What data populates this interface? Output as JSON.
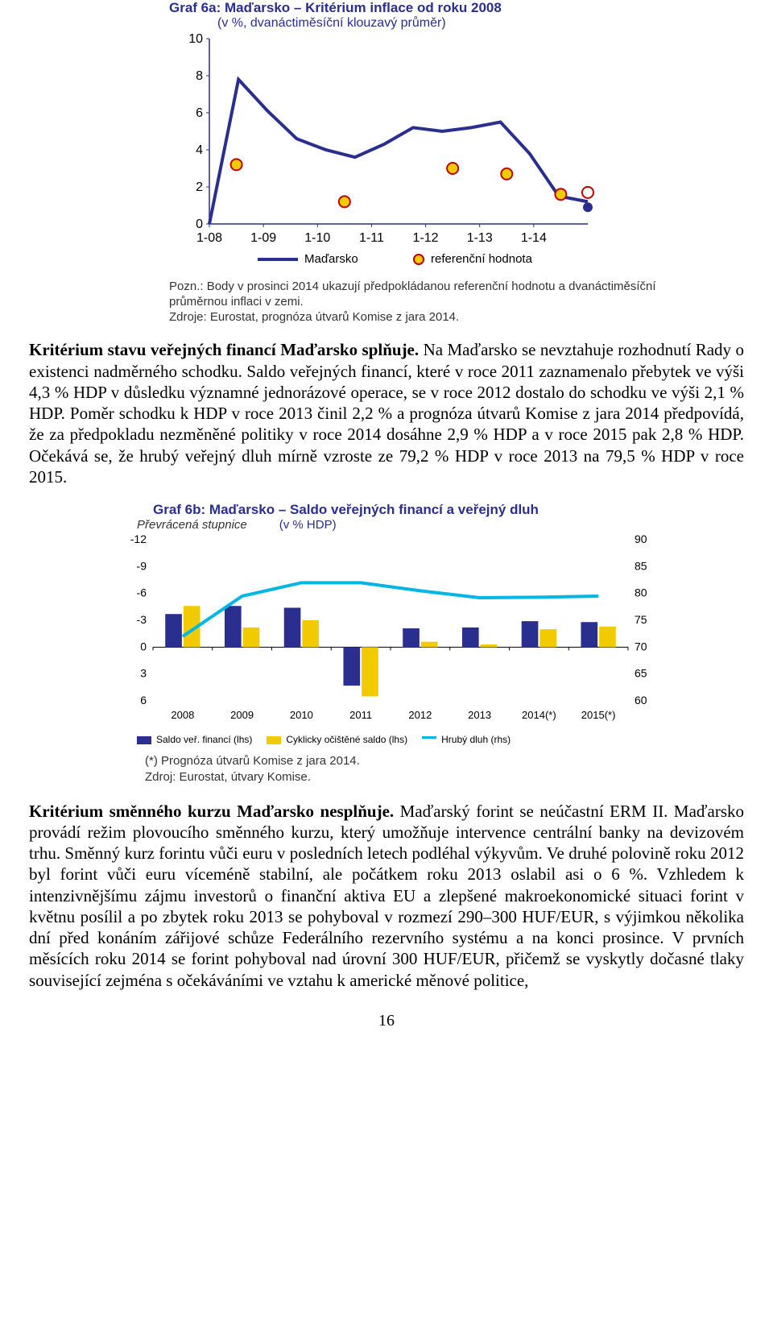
{
  "chartA": {
    "title_prefix": "Graf 6a: ",
    "title_bold1": "Maďarsko – Kritérium inflace od roku 2008",
    "subtitle": "(v %, dvanáctiměsíční klouzavý průměr)",
    "type": "line",
    "colors": {
      "line": "#2a2e8f",
      "axis": "#2a2e8f",
      "marker_fill": "#f2ca00",
      "marker_stroke": "#c10000"
    },
    "xTicks": [
      "1-08",
      "1-09",
      "1-10",
      "1-11",
      "1-12",
      "1-13",
      "1-14"
    ],
    "yTicks": [
      0,
      2,
      4,
      6,
      8,
      10
    ],
    "xlim": [
      0,
      7
    ],
    "ylim": [
      0,
      10
    ],
    "series": [
      0,
      7.8,
      6.1,
      4.6,
      4.0,
      3.6,
      4.3,
      5.2,
      5.0,
      5.2,
      5.5,
      3.8,
      1.5,
      1.2
    ],
    "markers": [
      {
        "x": 0.5,
        "y": 3.2,
        "type": "filled"
      },
      {
        "x": 2.5,
        "y": 1.2,
        "type": "filled"
      },
      {
        "x": 4.5,
        "y": 3.0,
        "type": "filled"
      },
      {
        "x": 5.5,
        "y": 2.7,
        "type": "filled"
      },
      {
        "x": 6.5,
        "y": 1.6,
        "type": "filled"
      },
      {
        "x": 7.0,
        "y": 1.7,
        "type": "open"
      },
      {
        "x": 7.0,
        "y": 0.9,
        "type": "solid-blue"
      }
    ],
    "legend": {
      "series": "Maďarsko",
      "reference": "referenční hodnota"
    },
    "note1": "Pozn.: Body v prosinci 2014 ukazují předpokládanou referenční hodnotu a dvanáctiměsíční průměrnou inflaci v zemi.",
    "note2": "Zdroje: Eurostat, prognóza útvarů Komise z jara 2014.",
    "axis_fontsize": 16,
    "title_fontsize": 17
  },
  "para1_prefix": "Kritérium stavu veřejných financí Maďarsko splňuje.",
  "para1_rest": " Na Maďarsko se nevztahuje rozhodnutí Rady o existenci nadměrného schodku. Saldo veřejných financí, které v roce 2011 zaznamenalo přebytek ve výši 4,3 % HDP v důsledku významné jednorázové operace, se v roce 2012 dostalo do schodku ve výši 2,1 % HDP. Poměr schodku k HDP v roce 2013 činil 2,2 % a prognóza útvarů Komise z jara 2014 předpovídá, že za předpokladu nezměněné politiky v roce 2014 dosáhne 2,9 % HDP a v roce 2015 pak 2,8 % HDP. Očekává se, že hrubý veřejný dluh mírně vzroste ze 79,2 % HDP v roce 2013 na 79,5 % HDP v roce 2015.",
  "chartB": {
    "title_prefix": "Graf 6b: ",
    "title_bold1": "Maďarsko – Saldo veřejných financí a veřejný dluh",
    "overlabel": "Převrácená stupnice",
    "subtitle": "(v % HDP)",
    "type": "bar-line-dual",
    "colors": {
      "bar1": "#2a2e8f",
      "bar2": "#f2ca00",
      "line": "#00b6e4",
      "axis": "#000000",
      "grid": "#cccccc"
    },
    "xLabels": [
      "2008",
      "2009",
      "2010",
      "2011",
      "2012",
      "2013",
      "2014(*)",
      "2015(*)"
    ],
    "yLeftTicks": [
      -12,
      -9,
      -6,
      -3,
      0,
      3,
      6
    ],
    "yRightTicks": [
      90,
      85,
      80,
      75,
      70,
      65,
      60
    ],
    "barsBlue": [
      -3.7,
      -4.6,
      -4.4,
      4.3,
      -2.1,
      -2.2,
      -2.9,
      -2.8
    ],
    "barsYellow": [
      -4.6,
      -2.2,
      -3.0,
      5.5,
      -0.6,
      -0.3,
      -2.0,
      -2.3
    ],
    "lineDebt": [
      72,
      79.5,
      82,
      82,
      80.5,
      79.2,
      79.3,
      79.5
    ],
    "legend": {
      "l1": "Saldo veř. financí (lhs)",
      "l2": "Cyklicky očištěné saldo (lhs)",
      "l3": "Hrubý dluh (rhs)"
    },
    "foot1": "(*) Prognóza útvarů Komise z jara 2014.",
    "foot2": "Zdroj: Eurostat, útvary Komise."
  },
  "para2_prefix": "Kritérium směnného kurzu Maďarsko nesplňuje.",
  "para2_rest": " Maďarský forint se neúčastní ERM II. Maďarsko provádí režim plovoucího směnného kurzu, který umožňuje intervence centrální banky na devizovém trhu. Směnný kurz forintu vůči euru v posledních letech podléhal výkyvům. Ve druhé polovině roku 2012 byl forint vůči euru víceméně stabilní, ale počátkem roku 2013 oslabil asi o 6 %. Vzhledem k intenzivnějšímu zájmu investorů o finanční aktiva EU a zlepšené makroekonomické situaci forint v květnu posílil a po zbytek roku 2013 se pohyboval v rozmezí 290–300 HUF/EUR, s výjimkou několika dní před konáním zářijové schůze Federálního rezervního systému a na konci prosince. V prvních měsících roku 2014 se forint pohyboval nad úrovní 300 HUF/EUR, přičemž se vyskytly dočasné tlaky související zejména s očekáváními ve vztahu k americké měnové politice,",
  "pageNumber": "16"
}
